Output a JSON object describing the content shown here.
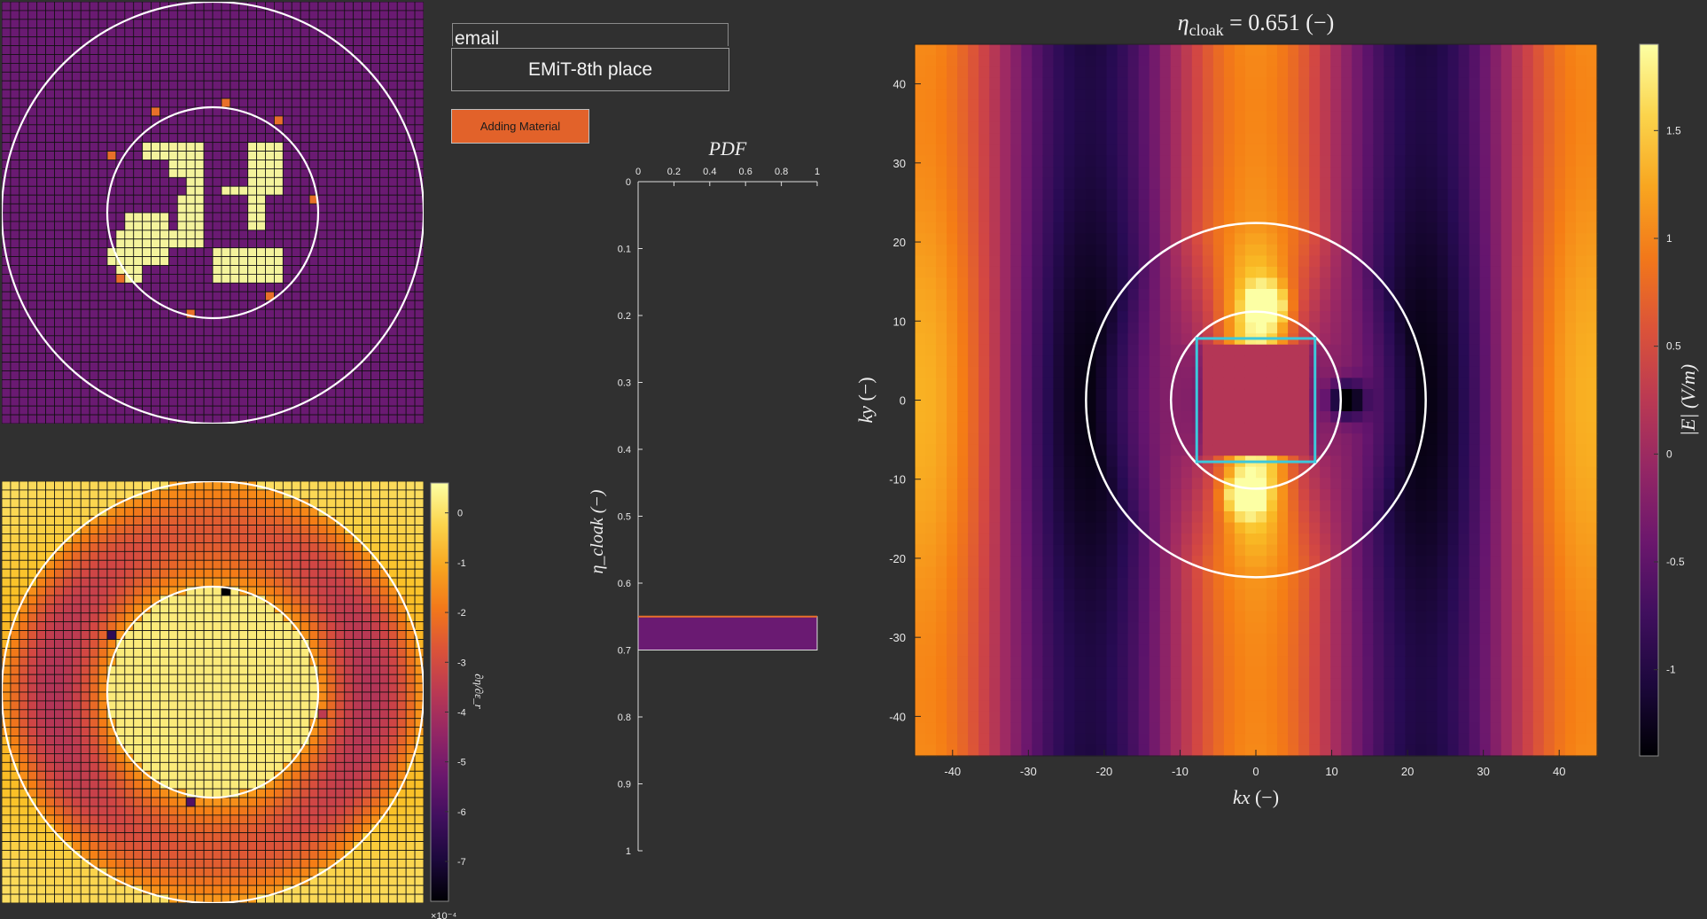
{
  "controls": {
    "email_label": "email",
    "email_value": "EMiT-8th place",
    "add_button_label": "Adding Material"
  },
  "colors": {
    "background": "#303030",
    "material_cell": "#f4f39c",
    "empty_cell": "#6a1a72",
    "added_cell": "#e8702a",
    "cloak_box": "#3cc8dc",
    "pdf_bar": "#6a1a72",
    "pdf_bar_edge": "#e8702a"
  },
  "chart_data": [
    {
      "id": "design-grid",
      "type": "heatmap",
      "title": "",
      "grid_size": [
        48,
        48
      ],
      "circles_radius_cells": [
        24,
        12
      ],
      "material_cells": "central letter-like pattern of filled cells",
      "legend": "none"
    },
    {
      "id": "sensitivity-map",
      "type": "heatmap",
      "title": "",
      "grid_size": [
        48,
        48
      ],
      "colorbar": {
        "label": "∂η/∂ε_r",
        "ticks": [
          "0",
          "-1",
          "-2",
          "-3",
          "-4",
          "-5",
          "-6",
          "-7"
        ],
        "range": [
          -7.8,
          0.6
        ],
        "exponent_label": "×10⁻⁴"
      }
    },
    {
      "id": "pdf-histogram",
      "type": "bar",
      "title": "PDF",
      "xlabel": "",
      "ylabel": "η_cloak (−)",
      "x_ticks": [
        "0",
        "0.2",
        "0.4",
        "0.6",
        "0.8",
        "1"
      ],
      "y_ticks": [
        "0",
        "0.1",
        "0.2",
        "0.3",
        "0.4",
        "0.5",
        "0.6",
        "0.7",
        "0.8",
        "0.9",
        "1"
      ],
      "xlim": [
        0,
        1
      ],
      "ylim": [
        0,
        1
      ],
      "bins": [
        {
          "from": 0.65,
          "to": 0.7,
          "value": 1
        }
      ]
    },
    {
      "id": "field-map",
      "type": "heatmap",
      "title_prefix": "η",
      "title_sub": "cloak",
      "title_value": " = 0.651 (−)",
      "xlabel_main": "kx",
      "xlabel_unit": "(−)",
      "ylabel_main": "ky",
      "ylabel_unit": "(−)",
      "xlim": [
        -45,
        45
      ],
      "ylim": [
        -45,
        45
      ],
      "x_ticks": [
        "-40",
        "-30",
        "-20",
        "-10",
        "0",
        "10",
        "20",
        "30",
        "40"
      ],
      "y_ticks": [
        "40",
        "30",
        "20",
        "10",
        "0",
        "-10",
        "-20",
        "-30",
        "-40"
      ],
      "circles_radius": [
        22.4,
        11.2
      ],
      "cloak_box": {
        "x": [
          -7.8,
          7.8
        ],
        "y": [
          -7.8,
          7.8
        ]
      },
      "colorbar": {
        "label": "|E| (V/m)",
        "ticks": [
          "1.5",
          "1",
          "0.5",
          "0",
          "-0.5",
          "-1"
        ],
        "range": [
          -1.4,
          1.9
        ]
      }
    }
  ]
}
